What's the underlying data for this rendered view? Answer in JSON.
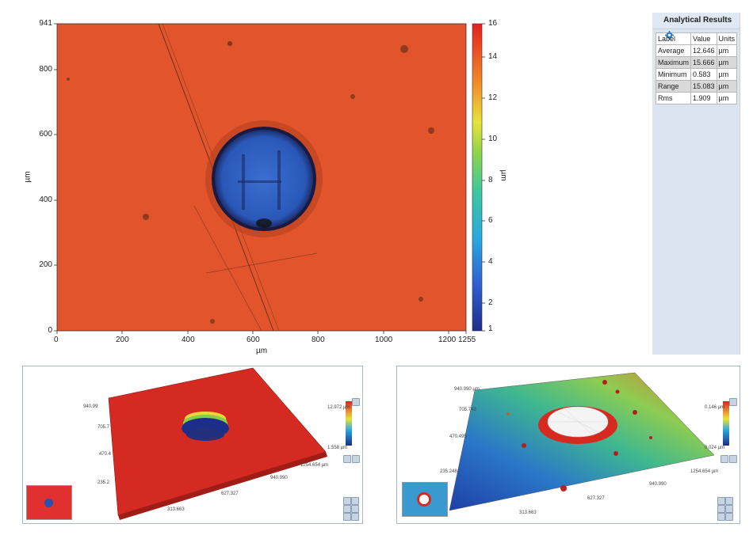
{
  "heightmap": {
    "x_axis_label": "µm",
    "y_axis_label": "µm",
    "x_ticks": [
      "0",
      "200",
      "400",
      "600",
      "800",
      "1000",
      "1200",
      "1255"
    ],
    "y_ticks": [
      "941",
      "800",
      "600",
      "400",
      "200",
      "0"
    ],
    "colorbar_ticks": [
      "16",
      "14",
      "12",
      "10",
      "8",
      "6",
      "4",
      "2",
      "1"
    ],
    "colorbar_label": "µm",
    "colors": {
      "surface": "#e2552c",
      "hole": "#2a5bb8",
      "rim": "#1a1a40"
    }
  },
  "analytical_results": {
    "title": "Analytical Results",
    "icon": "gear-icon",
    "columns": [
      "Label",
      "Value",
      "Units"
    ],
    "rows": [
      {
        "label": "Average",
        "value": "12.646",
        "units": "µm"
      },
      {
        "label": "Maximum",
        "value": "15.666",
        "units": "µm"
      },
      {
        "label": "Minimum",
        "value": "0.583",
        "units": "µm"
      },
      {
        "label": "Range",
        "value": "15.083",
        "units": "µm"
      },
      {
        "label": "Rms",
        "value": "1.909",
        "units": "µm"
      }
    ]
  },
  "view3d_left": {
    "y_labels": [
      "940.99",
      "705.7",
      "470.4",
      "235.2"
    ],
    "x_labels": [
      "1254.654 µm",
      "940.990",
      "627.327",
      "313.663"
    ],
    "colorbar_top": "12.972 µm",
    "colorbar_bottom": "1.558 µm"
  },
  "view3d_right": {
    "y_labels": [
      "940.990 µm",
      "705.743",
      "470.495",
      "235.248"
    ],
    "x_labels": [
      "1254.654 µm",
      "940.990",
      "627.327",
      "313.663"
    ],
    "colorbar_top": "0.146 µm",
    "colorbar_bottom": "0.024 µm"
  }
}
